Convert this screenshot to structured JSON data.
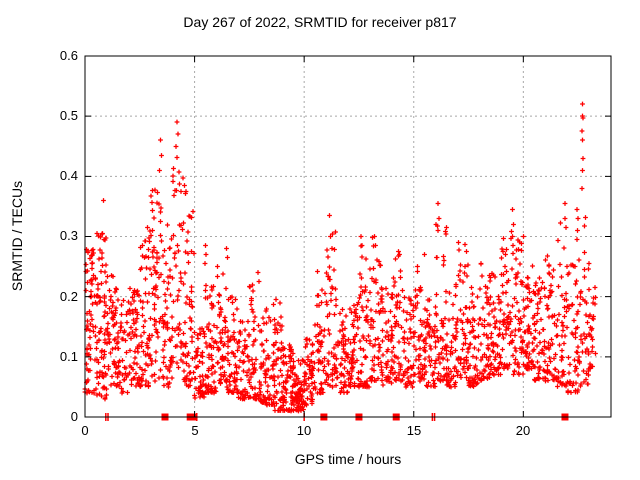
{
  "header": {
    "title": "Day 267 of 2022, SRMTID for receiver p817"
  },
  "chart_data": {
    "type": "scatter",
    "title": "Day 267 of 2022, SRMTID for receiver p817",
    "xlabel": "GPS time / hours",
    "ylabel": "SRMTID / TECUs",
    "xlim": [
      0,
      24
    ],
    "ylim": [
      0,
      0.6
    ],
    "xticks": [
      0,
      5,
      10,
      15,
      20
    ],
    "xtick_labels": [
      "0",
      "5",
      "10",
      "15",
      "20"
    ],
    "yticks": [
      0,
      0.1,
      0.2,
      0.3,
      0.4,
      0.5,
      0.6
    ],
    "ytick_labels": [
      "0",
      "0.1",
      "0.2",
      "0.3",
      "0.4",
      "0.5",
      "0.6"
    ],
    "grid": true,
    "legend": "none",
    "marker": "plus",
    "marker_color": "#ff0000",
    "grid_color": "#a8a8a8",
    "axis_color": "#000000",
    "seed": 7,
    "density_bins": [
      [
        0.0,
        0.5,
        75,
        0.04,
        0.28,
        1.3
      ],
      [
        0.5,
        1.0,
        75,
        0.03,
        0.31,
        1.5
      ],
      [
        1.0,
        1.5,
        60,
        0.05,
        0.25,
        1.4
      ],
      [
        1.5,
        2.0,
        45,
        0.04,
        0.2,
        1.4
      ],
      [
        2.0,
        2.5,
        55,
        0.05,
        0.22,
        1.4
      ],
      [
        2.5,
        3.0,
        65,
        0.05,
        0.31,
        1.5
      ],
      [
        3.0,
        3.5,
        60,
        0.06,
        0.38,
        1.4
      ],
      [
        3.5,
        4.0,
        55,
        0.05,
        0.33,
        1.6
      ],
      [
        4.0,
        4.5,
        50,
        0.08,
        0.44,
        1.4
      ],
      [
        4.5,
        5.0,
        55,
        0.05,
        0.38,
        1.7
      ],
      [
        5.0,
        5.5,
        55,
        0.03,
        0.15,
        1.5
      ],
      [
        5.5,
        6.0,
        60,
        0.04,
        0.22,
        1.7
      ],
      [
        6.0,
        6.5,
        55,
        0.05,
        0.25,
        1.6
      ],
      [
        6.5,
        7.0,
        55,
        0.04,
        0.2,
        1.5
      ],
      [
        7.0,
        7.5,
        50,
        0.03,
        0.16,
        1.4
      ],
      [
        7.5,
        8.0,
        50,
        0.03,
        0.22,
        1.7
      ],
      [
        8.0,
        8.5,
        55,
        0.02,
        0.18,
        1.8
      ],
      [
        8.5,
        9.0,
        60,
        0.01,
        0.21,
        2.0
      ],
      [
        9.0,
        9.5,
        70,
        0.01,
        0.12,
        1.5
      ],
      [
        9.5,
        10.0,
        70,
        0.01,
        0.1,
        1.4
      ],
      [
        10.0,
        10.5,
        55,
        0.02,
        0.13,
        1.4
      ],
      [
        10.5,
        11.0,
        50,
        0.04,
        0.25,
        1.7
      ],
      [
        11.0,
        11.5,
        55,
        0.05,
        0.33,
        1.8
      ],
      [
        11.5,
        12.0,
        50,
        0.04,
        0.18,
        1.5
      ],
      [
        12.0,
        12.5,
        55,
        0.05,
        0.2,
        1.5
      ],
      [
        12.5,
        13.0,
        55,
        0.05,
        0.29,
        1.8
      ],
      [
        13.0,
        13.5,
        50,
        0.06,
        0.3,
        1.8
      ],
      [
        13.5,
        14.0,
        50,
        0.05,
        0.22,
        1.5
      ],
      [
        14.0,
        14.5,
        50,
        0.06,
        0.28,
        1.7
      ],
      [
        14.5,
        15.0,
        50,
        0.05,
        0.2,
        1.5
      ],
      [
        15.0,
        15.5,
        50,
        0.06,
        0.27,
        1.7
      ],
      [
        15.5,
        16.0,
        50,
        0.05,
        0.22,
        1.5
      ],
      [
        16.0,
        16.5,
        50,
        0.06,
        0.34,
        1.8
      ],
      [
        16.5,
        17.0,
        50,
        0.05,
        0.25,
        1.6
      ],
      [
        17.0,
        17.5,
        55,
        0.06,
        0.29,
        1.7
      ],
      [
        17.5,
        18.0,
        50,
        0.05,
        0.22,
        1.5
      ],
      [
        18.0,
        18.5,
        55,
        0.06,
        0.26,
        1.6
      ],
      [
        18.5,
        19.0,
        55,
        0.07,
        0.24,
        1.5
      ],
      [
        19.0,
        19.5,
        55,
        0.08,
        0.33,
        1.7
      ],
      [
        19.5,
        20.0,
        55,
        0.07,
        0.3,
        1.7
      ],
      [
        20.0,
        20.5,
        60,
        0.08,
        0.26,
        1.5
      ],
      [
        20.5,
        21.0,
        55,
        0.06,
        0.24,
        1.5
      ],
      [
        21.0,
        21.5,
        50,
        0.06,
        0.29,
        1.6
      ],
      [
        21.5,
        22.0,
        50,
        0.05,
        0.33,
        1.8
      ],
      [
        22.0,
        22.5,
        50,
        0.04,
        0.31,
        1.7
      ],
      [
        22.5,
        23.0,
        45,
        0.05,
        0.35,
        1.8
      ],
      [
        23.0,
        23.3,
        25,
        0.08,
        0.22,
        1.3
      ]
    ],
    "outliers": [
      [
        0.8,
        0.305
      ],
      [
        0.85,
        0.36
      ],
      [
        2.85,
        0.315
      ],
      [
        3.4,
        0.41
      ],
      [
        3.45,
        0.46
      ],
      [
        3.5,
        0.435
      ],
      [
        4.15,
        0.45
      ],
      [
        4.2,
        0.49
      ],
      [
        4.25,
        0.47
      ],
      [
        4.55,
        0.385
      ],
      [
        4.6,
        0.375
      ],
      [
        5.48,
        0.255
      ],
      [
        5.5,
        0.285
      ],
      [
        5.5,
        0.21
      ],
      [
        5.52,
        0.27
      ],
      [
        6.45,
        0.28
      ],
      [
        6.5,
        0.265
      ],
      [
        7.9,
        0.24
      ],
      [
        7.95,
        0.225
      ],
      [
        11.15,
        0.335
      ],
      [
        11.2,
        0.3
      ],
      [
        12.6,
        0.3
      ],
      [
        12.65,
        0.285
      ],
      [
        13.2,
        0.3
      ],
      [
        13.25,
        0.285
      ],
      [
        14.3,
        0.275
      ],
      [
        14.35,
        0.27
      ],
      [
        15.5,
        0.27
      ],
      [
        16.1,
        0.355
      ],
      [
        16.1,
        0.31
      ],
      [
        16.15,
        0.33
      ],
      [
        17.05,
        0.29
      ],
      [
        19.5,
        0.345
      ],
      [
        19.5,
        0.3
      ],
      [
        19.55,
        0.32
      ],
      [
        20.0,
        0.3
      ],
      [
        21.9,
        0.355
      ],
      [
        21.9,
        0.33
      ],
      [
        21.95,
        0.315
      ],
      [
        22.45,
        0.345
      ],
      [
        22.48,
        0.31
      ],
      [
        22.5,
        0.33
      ],
      [
        22.68,
        0.475
      ],
      [
        22.68,
        0.38
      ],
      [
        22.7,
        0.52
      ],
      [
        22.7,
        0.5
      ],
      [
        22.7,
        0.46
      ],
      [
        22.7,
        0.41
      ],
      [
        22.72,
        0.497
      ],
      [
        22.72,
        0.43
      ]
    ],
    "zero_squares": [
      3.65,
      4.8,
      4.95,
      10.9,
      12.5,
      14.2,
      21.9
    ],
    "zero_ticks": [
      0.95,
      1.05,
      5.1,
      10.0,
      15.85,
      15.95
    ]
  }
}
